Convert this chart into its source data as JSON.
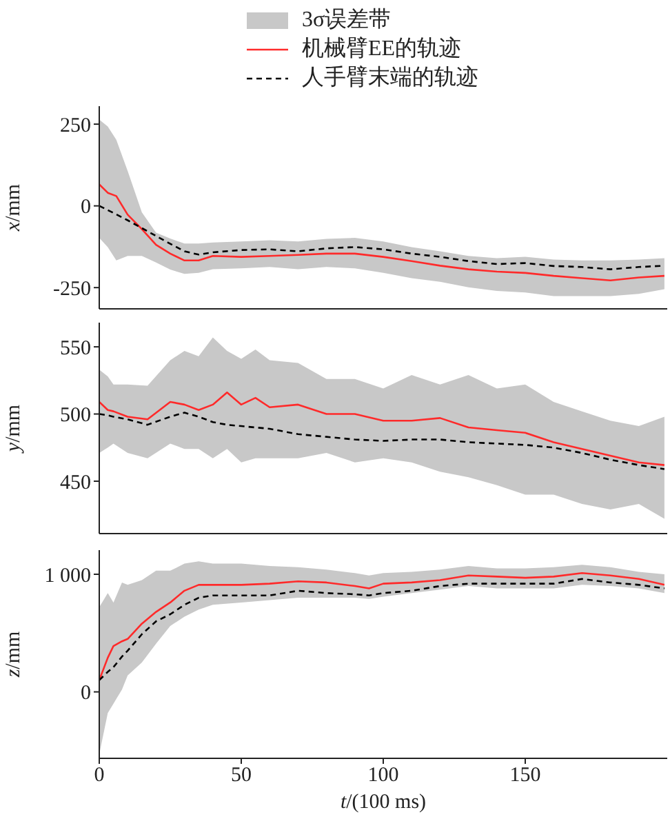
{
  "chart_data": [
    {
      "type": "line",
      "ylabel": "x/mm",
      "legend": "top",
      "annotations": [
        "3σ误差带"
      ],
      "tick_labels": "y",
      "xlim": [
        0,
        200
      ],
      "xticks": [
        0,
        50,
        100,
        150
      ],
      "ylim": [
        -315,
        305
      ],
      "yticks": [
        -250,
        0,
        250
      ],
      "x": [
        0,
        3,
        6,
        10,
        15,
        20,
        25,
        30,
        35,
        40,
        50,
        60,
        70,
        80,
        90,
        100,
        110,
        120,
        130,
        140,
        150,
        160,
        170,
        180,
        190,
        199
      ],
      "series": [
        {
          "name": "机械臂EE的轨迹",
          "color": "#ff2a2a",
          "line_style": "solid",
          "values": [
            66,
            40,
            30,
            -27,
            -71,
            -119,
            -146,
            -167,
            -167,
            -153,
            -156,
            -153,
            -150,
            -146,
            -146,
            -156,
            -169,
            -183,
            -194,
            -201,
            -205,
            -214,
            -221,
            -228,
            -219,
            -214
          ],
          "lower": [
            -98,
            -126,
            -167,
            -153,
            -153,
            -173,
            -195,
            -208,
            -205,
            -194,
            -191,
            -187,
            -194,
            -187,
            -191,
            -205,
            -221,
            -232,
            -249,
            -260,
            -265,
            -276,
            -276,
            -276,
            -269,
            -255
          ],
          "upper": [
            264,
            243,
            202,
            107,
            -20,
            -82,
            -100,
            -115,
            -115,
            -112,
            -109,
            -105,
            -109,
            -101,
            -98,
            -109,
            -126,
            -139,
            -153,
            -160,
            -156,
            -164,
            -167,
            -167,
            -164,
            -160
          ]
        },
        {
          "name": "人手臂末端的轨迹",
          "color": "#000000",
          "line_style": "dashed",
          "values": [
            0,
            -13,
            -26,
            -44,
            -68,
            -92,
            -116,
            -139,
            -149,
            -142,
            -135,
            -133,
            -139,
            -130,
            -126,
            -133,
            -146,
            -156,
            -169,
            -178,
            -175,
            -184,
            -187,
            -194,
            -187,
            -183
          ]
        }
      ]
    },
    {
      "type": "line",
      "ylabel": "y/mm",
      "tick_labels": "y",
      "xlim": [
        0,
        200
      ],
      "xticks": [
        0,
        50,
        100,
        150
      ],
      "ylim": [
        411,
        568
      ],
      "yticks": [
        450,
        500,
        550
      ],
      "x": [
        0,
        3,
        5,
        10,
        17,
        25,
        30,
        35,
        40,
        45,
        50,
        55,
        60,
        70,
        80,
        90,
        100,
        110,
        120,
        130,
        140,
        150,
        160,
        170,
        180,
        190,
        199
      ],
      "series": [
        {
          "color": "#ff2a2a",
          "line_style": "solid",
          "values": [
            509,
            503,
            502,
            498,
            496,
            509,
            507,
            503,
            507,
            516,
            507,
            512,
            505,
            507,
            500,
            500,
            495,
            495,
            497,
            490,
            488,
            486,
            479,
            474,
            469,
            464,
            462
          ],
          "lower": [
            471,
            475,
            478,
            471,
            467,
            478,
            474,
            474,
            467,
            474,
            464,
            467,
            467,
            467,
            471,
            464,
            467,
            464,
            457,
            453,
            447,
            440,
            440,
            433,
            429,
            433,
            422
          ],
          "upper": [
            533,
            528,
            522,
            522,
            521,
            540,
            547,
            543,
            557,
            547,
            541,
            548,
            540,
            538,
            526,
            526,
            519,
            529,
            522,
            529,
            519,
            522,
            509,
            502,
            495,
            491,
            498
          ]
        },
        {
          "color": "#000000",
          "line_style": "dashed",
          "values": [
            500,
            499,
            498,
            496,
            492,
            498,
            501,
            498,
            494,
            492,
            491,
            490,
            489,
            485,
            483,
            481,
            480,
            481,
            481,
            479,
            478,
            477,
            475,
            471,
            466,
            462,
            459
          ]
        }
      ]
    },
    {
      "type": "line",
      "ylabel": "z/mm",
      "xlabel": "t/(100 ms)",
      "xlim": [
        0,
        200
      ],
      "xticks": [
        0,
        50,
        100,
        150
      ],
      "ylim": [
        -565,
        1205
      ],
      "yticks": [
        0,
        {
          "value": 1000,
          "label": "1 000"
        }
      ],
      "x": [
        0,
        3,
        5,
        8,
        10,
        15,
        20,
        25,
        30,
        35,
        40,
        50,
        60,
        70,
        80,
        90,
        95,
        100,
        110,
        120,
        130,
        140,
        150,
        160,
        170,
        180,
        190,
        199
      ],
      "series": [
        {
          "color": "#ff2a2a",
          "line_style": "solid",
          "values": [
            100,
            290,
            390,
            430,
            450,
            580,
            680,
            760,
            860,
            910,
            910,
            910,
            920,
            940,
            930,
            900,
            880,
            920,
            930,
            950,
            990,
            980,
            970,
            980,
            1010,
            990,
            960,
            910
          ],
          "lower": [
            -530,
            -180,
            -100,
            20,
            140,
            250,
            410,
            560,
            640,
            700,
            740,
            760,
            780,
            800,
            800,
            800,
            790,
            810,
            840,
            870,
            900,
            880,
            880,
            880,
            910,
            900,
            880,
            840
          ],
          "upper": [
            720,
            840,
            760,
            930,
            910,
            950,
            1030,
            1030,
            1090,
            1110,
            1090,
            1090,
            1070,
            1060,
            1040,
            1010,
            990,
            1010,
            1020,
            1040,
            1070,
            1050,
            1050,
            1060,
            1080,
            1060,
            1020,
            1000
          ]
        },
        {
          "color": "#000000",
          "line_style": "dashed",
          "values": [
            100,
            170,
            210,
            300,
            350,
            490,
            600,
            660,
            740,
            800,
            820,
            820,
            820,
            860,
            840,
            830,
            820,
            840,
            860,
            900,
            920,
            920,
            920,
            920,
            960,
            930,
            910,
            880
          ]
        }
      ]
    }
  ]
}
